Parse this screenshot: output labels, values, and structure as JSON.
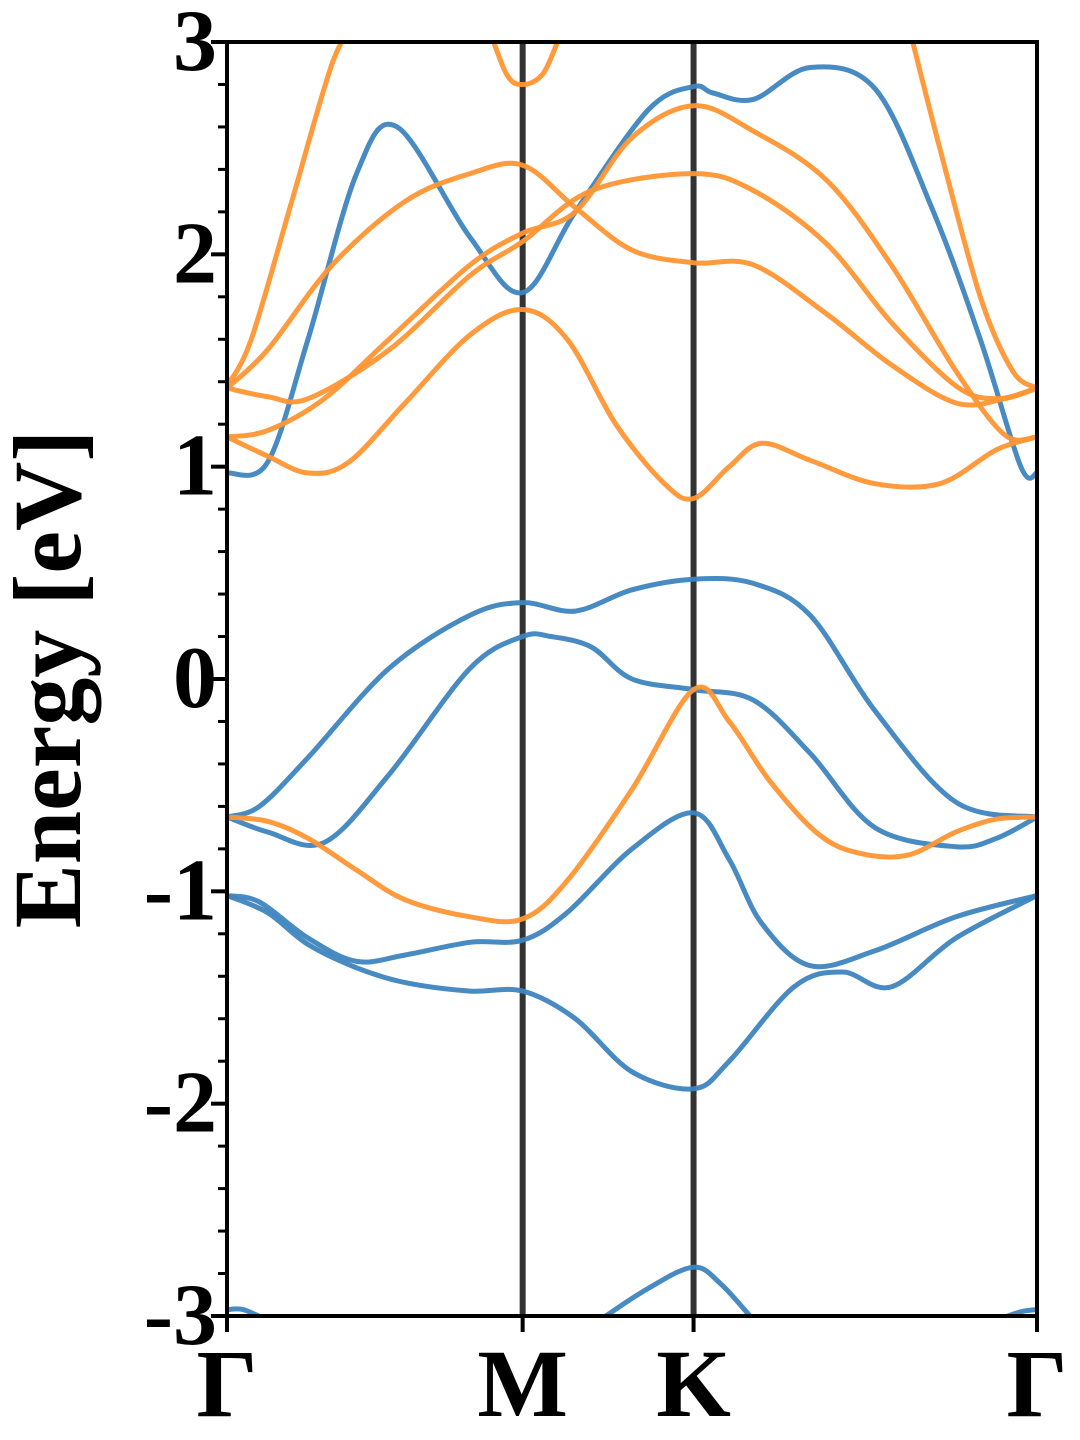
{
  "chart_data": {
    "type": "line",
    "title": "",
    "xlabel": "",
    "ylabel": "Energy [eV]",
    "ylim": [
      -3,
      3
    ],
    "xlim": [
      0,
      1
    ],
    "grid": false,
    "legend": "none",
    "high_symbol_points": [
      {
        "label": "Γ",
        "x": 0.0
      },
      {
        "label": "M",
        "x": 0.365
      },
      {
        "label": "K",
        "x": 0.576
      },
      {
        "label": "Γ",
        "x": 1.0
      }
    ],
    "y_ticks": [
      {
        "value": 3,
        "label": "3"
      },
      {
        "value": 2,
        "label": "2"
      },
      {
        "value": 1,
        "label": "1"
      },
      {
        "value": 0,
        "label": "0"
      },
      {
        "value": -1,
        "label": "-1"
      },
      {
        "value": -2,
        "label": "-2"
      },
      {
        "value": -3,
        "label": "-3"
      }
    ],
    "colors": {
      "blue": "#3d85bf",
      "orange": "#ff9533",
      "vline": "#333333"
    },
    "series": [
      {
        "color": "blue",
        "x": [
          0.0,
          0.05,
          0.1,
          0.16,
          0.21,
          0.3,
          0.365,
          0.43,
          0.52,
          0.576,
          0.6,
          0.65,
          0.72,
          0.8,
          0.87,
          0.93,
          0.98,
          1.0
        ],
        "y": [
          0.97,
          1.02,
          1.6,
          2.38,
          2.6,
          2.08,
          1.82,
          2.2,
          2.68,
          2.79,
          2.76,
          2.73,
          2.88,
          2.78,
          2.22,
          1.6,
          1.0,
          0.97
        ]
      },
      {
        "color": "blue",
        "x": [
          0.0,
          0.04,
          0.1,
          0.2,
          0.3,
          0.365,
          0.43,
          0.5,
          0.576,
          0.65,
          0.72,
          0.8,
          0.9,
          1.0
        ],
        "y": [
          -0.65,
          -0.6,
          -0.37,
          0.05,
          0.3,
          0.36,
          0.32,
          0.42,
          0.47,
          0.45,
          0.3,
          -0.15,
          -0.58,
          -0.65
        ]
      },
      {
        "color": "blue",
        "x": [
          0.0,
          0.05,
          0.12,
          0.2,
          0.3,
          0.365,
          0.4,
          0.45,
          0.5,
          0.576,
          0.65,
          0.72,
          0.8,
          0.9,
          0.95,
          1.0
        ],
        "y": [
          -0.65,
          -0.72,
          -0.77,
          -0.45,
          0.05,
          0.2,
          0.2,
          0.15,
          0.0,
          -0.05,
          -0.1,
          -0.35,
          -0.7,
          -0.79,
          -0.75,
          -0.65
        ]
      },
      {
        "color": "blue",
        "x": [
          0.0,
          0.04,
          0.1,
          0.16,
          0.22,
          0.3,
          0.365,
          0.42,
          0.5,
          0.576,
          0.62,
          0.66,
          0.72,
          0.8,
          0.9,
          1.0
        ],
        "y": [
          -1.02,
          -1.05,
          -1.22,
          -1.33,
          -1.3,
          -1.24,
          -1.23,
          -1.1,
          -0.8,
          -0.63,
          -0.85,
          -1.15,
          -1.35,
          -1.28,
          -1.12,
          -1.02
        ]
      },
      {
        "color": "blue",
        "x": [
          0.0,
          0.05,
          0.1,
          0.16,
          0.22,
          0.3,
          0.365,
          0.43,
          0.5,
          0.576,
          0.62,
          0.7,
          0.76,
          0.82,
          0.9,
          1.0
        ],
        "y": [
          -1.02,
          -1.1,
          -1.25,
          -1.36,
          -1.43,
          -1.47,
          -1.47,
          -1.6,
          -1.85,
          -1.93,
          -1.8,
          -1.45,
          -1.38,
          -1.45,
          -1.22,
          -1.02
        ]
      },
      {
        "color": "blue",
        "x": [
          0.0,
          0.02,
          0.05
        ],
        "y": [
          -2.97,
          -2.97,
          -3.02
        ]
      },
      {
        "color": "blue",
        "x": [
          0.46,
          0.52,
          0.576,
          0.61,
          0.65
        ],
        "y": [
          -3.02,
          -2.87,
          -2.77,
          -2.85,
          -3.02
        ]
      },
      {
        "color": "blue",
        "x": [
          0.95,
          0.98,
          1.0
        ],
        "y": [
          -3.02,
          -2.98,
          -2.97
        ]
      },
      {
        "color": "orange",
        "x": [
          0.0,
          0.03,
          0.08,
          0.13,
          0.16
        ],
        "y": [
          1.38,
          1.6,
          2.25,
          2.9,
          3.1
        ]
      },
      {
        "color": "orange",
        "x": [
          0.32,
          0.345,
          0.365,
          0.39,
          0.41
        ],
        "y": [
          3.1,
          2.85,
          2.8,
          2.85,
          3.02
        ]
      },
      {
        "color": "orange",
        "x": [
          0.84,
          0.88,
          0.93,
          0.97,
          1.0
        ],
        "y": [
          3.1,
          2.5,
          1.8,
          1.45,
          1.37
        ]
      },
      {
        "color": "orange",
        "x": [
          0.0,
          0.05,
          0.13,
          0.22,
          0.3,
          0.365,
          0.43,
          0.5,
          0.576,
          0.65,
          0.74,
          0.82,
          0.9,
          0.96,
          1.0
        ],
        "y": [
          1.37,
          1.55,
          1.95,
          2.25,
          2.38,
          2.42,
          2.22,
          2.02,
          1.96,
          1.95,
          1.72,
          1.48,
          1.3,
          1.32,
          1.37
        ]
      },
      {
        "color": "orange",
        "x": [
          0.0,
          0.05,
          0.1,
          0.2,
          0.3,
          0.365,
          0.45,
          0.576,
          0.65,
          0.74,
          0.82,
          0.9,
          0.95,
          1.0
        ],
        "y": [
          1.37,
          1.33,
          1.32,
          1.55,
          1.9,
          2.06,
          2.3,
          2.38,
          2.3,
          2.05,
          1.68,
          1.38,
          1.32,
          1.37
        ]
      },
      {
        "color": "orange",
        "x": [
          0.0,
          0.05,
          0.12,
          0.2,
          0.3,
          0.365,
          0.43,
          0.5,
          0.576,
          0.65,
          0.74,
          0.82,
          0.9,
          0.96,
          1.0
        ],
        "y": [
          1.14,
          1.17,
          1.32,
          1.6,
          1.95,
          2.1,
          2.2,
          2.55,
          2.7,
          2.58,
          2.35,
          1.95,
          1.45,
          1.15,
          1.14
        ]
      },
      {
        "color": "orange",
        "x": [
          0.0,
          0.05,
          0.1,
          0.15,
          0.22,
          0.3,
          0.365,
          0.42,
          0.48,
          0.54,
          0.576,
          0.62,
          0.66,
          0.72,
          0.8,
          0.88,
          0.95,
          1.0
        ],
        "y": [
          1.14,
          1.05,
          0.97,
          1.02,
          1.3,
          1.62,
          1.74,
          1.6,
          1.2,
          0.92,
          0.85,
          1.0,
          1.11,
          1.03,
          0.92,
          0.92,
          1.08,
          1.14
        ]
      },
      {
        "color": "orange",
        "x": [
          0.0,
          0.05,
          0.1,
          0.16,
          0.22,
          0.3,
          0.365,
          0.42,
          0.5,
          0.576,
          0.62,
          0.67,
          0.73,
          0.78,
          0.84,
          0.9,
          0.95,
          1.0
        ],
        "y": [
          -0.65,
          -0.67,
          -0.75,
          -0.9,
          -1.04,
          -1.12,
          -1.13,
          -0.95,
          -0.52,
          -0.05,
          -0.2,
          -0.48,
          -0.73,
          -0.82,
          -0.83,
          -0.72,
          -0.66,
          -0.65
        ]
      }
    ]
  }
}
